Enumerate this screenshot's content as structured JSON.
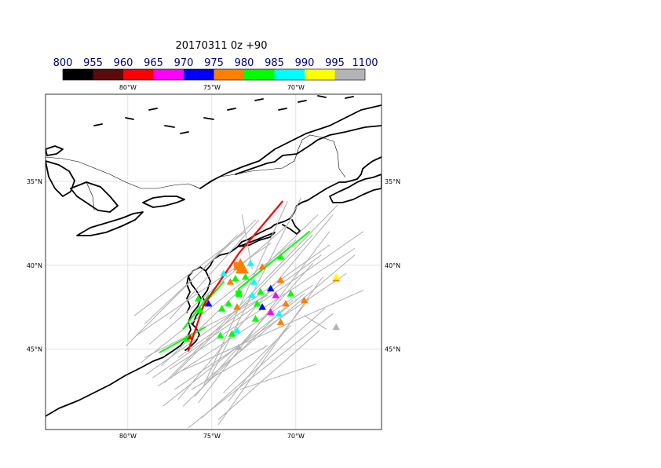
{
  "title": "20170311 0z +90",
  "colorbar": {
    "labels": [
      "800",
      "955",
      "960",
      "965",
      "970",
      "975",
      "980",
      "985",
      "990",
      "995",
      "1100"
    ],
    "colors": [
      "#000000",
      "#5c0a0a",
      "#ff0000",
      "#ff00ff",
      "#0000ff",
      "#ff7f00",
      "#00ff00",
      "#00ffff",
      "#ffff00",
      "#b4b4b4"
    ]
  },
  "axes": {
    "top_lon_labels": [
      "80°W",
      "75°W",
      "70°W"
    ],
    "bottom_lon_labels": [
      "80°W",
      "75°W",
      "70°W"
    ],
    "left_lat_labels": [
      "45°N",
      "40°N",
      "35°N"
    ],
    "right_lat_labels": [
      "45°N",
      "40°N",
      "35°N"
    ]
  },
  "map": {
    "lon_range": [
      -84.9,
      -64.9
    ],
    "lat_range": [
      30.2,
      50.2
    ],
    "grid_lons": [
      -80,
      -75,
      -70
    ],
    "grid_lats": [
      35,
      40,
      45
    ],
    "track_colors": {
      "gray": "#b4b4b4",
      "green": "#00ff00",
      "red": "#ff0000"
    }
  },
  "tracks": {
    "gray": [
      [
        [
          -78.9,
          33.5
        ],
        [
          -68.0,
          41.2
        ]
      ],
      [
        [
          -78.5,
          33.3
        ],
        [
          -66.0,
          42.0
        ]
      ],
      [
        [
          -78.0,
          34.0
        ],
        [
          -68.7,
          43.0
        ]
      ],
      [
        [
          -77.8,
          33.0
        ],
        [
          -67.5,
          43.6
        ]
      ],
      [
        [
          -79.2,
          34.2
        ],
        [
          -70.0,
          41.5
        ]
      ],
      [
        [
          -77.5,
          33.8
        ],
        [
          -66.5,
          41.0
        ]
      ],
      [
        [
          -78.7,
          35.3
        ],
        [
          -70.5,
          42.4
        ]
      ],
      [
        [
          -79.5,
          35.8
        ],
        [
          -71.5,
          41.3
        ]
      ],
      [
        [
          -77.0,
          34.5
        ],
        [
          -68.5,
          40.6
        ]
      ],
      [
        [
          -76.8,
          33.7
        ],
        [
          -66.0,
          38.5
        ]
      ],
      [
        [
          -77.2,
          32.6
        ],
        [
          -67.0,
          39.5
        ]
      ],
      [
        [
          -78.2,
          32.8
        ],
        [
          -69.0,
          38.8
        ]
      ],
      [
        [
          -77.9,
          31.6
        ],
        [
          -69.5,
          38.3
        ]
      ],
      [
        [
          -76.7,
          31.6
        ],
        [
          -70.2,
          37.9
        ]
      ],
      [
        [
          -76.0,
          32.2
        ],
        [
          -69.0,
          40.1
        ]
      ],
      [
        [
          -75.8,
          31.8
        ],
        [
          -68.0,
          42.0
        ]
      ],
      [
        [
          -77.0,
          32.0
        ],
        [
          -67.8,
          43.0
        ]
      ],
      [
        [
          -79.0,
          36.5
        ],
        [
          -72.4,
          42.7
        ]
      ],
      [
        [
          -80.1,
          35.2
        ],
        [
          -73.5,
          41.8
        ]
      ],
      [
        [
          -79.6,
          37.0
        ],
        [
          -73.0,
          42.0
        ]
      ],
      [
        [
          -77.4,
          33.3
        ],
        [
          -69.0,
          41.8
        ]
      ],
      [
        [
          -75.4,
          33.1
        ],
        [
          -66.5,
          40.6
        ]
      ],
      [
        [
          -74.3,
          32.4
        ],
        [
          -70.3,
          36.4
        ]
      ],
      [
        [
          -74.6,
          30.8
        ],
        [
          -68.6,
          36.1
        ]
      ],
      [
        [
          -75.6,
          30.9
        ],
        [
          -68.3,
          37.4
        ]
      ],
      [
        [
          -76.4,
          30.3
        ],
        [
          -67.8,
          37.1
        ]
      ],
      [
        [
          -79.0,
          34.5
        ],
        [
          -71.7,
          38.2
        ]
      ],
      [
        [
          -73.3,
          32.6
        ],
        [
          -68.8,
          34.1
        ]
      ],
      [
        [
          -74.6,
          30.5
        ],
        [
          -68.4,
          39.3
        ]
      ],
      [
        [
          -77.5,
          36.8
        ],
        [
          -72.2,
          42.7
        ]
      ],
      [
        [
          -73.2,
          43.0
        ],
        [
          -72.6,
          39.8
        ]
      ],
      [
        [
          -69.5,
          37.0
        ],
        [
          -68.2,
          36.2
        ]
      ],
      [
        [
          -76.2,
          32.6
        ],
        [
          -71.7,
          35.2
        ]
      ],
      [
        [
          -75.0,
          33.5
        ],
        [
          -69.7,
          44.0
        ]
      ],
      [
        [
          -75.5,
          32.8
        ],
        [
          -70.5,
          43.8
        ]
      ],
      [
        [
          -74.0,
          31.9
        ],
        [
          -69.2,
          38.0
        ]
      ]
    ],
    "green": [
      [
        [
          -78.1,
          34.8
        ],
        [
          -75.4,
          36.3
        ]
      ],
      [
        [
          -76.7,
          36.2
        ],
        [
          -75.2,
          38.2
        ]
      ],
      [
        [
          -73.4,
          38.6
        ],
        [
          -69.2,
          42.0
        ]
      ],
      [
        [
          -75.2,
          38.0
        ],
        [
          -74.3,
          39.0
        ]
      ]
    ],
    "red": [
      [
        [
          -76.4,
          34.9
        ],
        [
          -75.5,
          37.6
        ]
      ],
      [
        [
          -75.5,
          37.6
        ],
        [
          -73.4,
          40.7
        ]
      ],
      [
        [
          -73.4,
          40.7
        ],
        [
          -70.8,
          43.8
        ]
      ]
    ]
  },
  "markers": [
    {
      "lon": -73.3,
      "lat": 40.0,
      "color": "#ff7f00",
      "size": 9
    },
    {
      "lon": -73.2,
      "lat": 39.8,
      "color": "#ff7f00",
      "size": 9
    },
    {
      "lon": -72.7,
      "lat": 40.1,
      "color": "#00ffff",
      "size": 5
    },
    {
      "lon": -72.0,
      "lat": 39.9,
      "color": "#ff7f00",
      "size": 5
    },
    {
      "lon": -73.6,
      "lat": 39.2,
      "color": "#00ff00",
      "size": 5
    },
    {
      "lon": -73.0,
      "lat": 39.3,
      "color": "#00ff00",
      "size": 5
    },
    {
      "lon": -72.5,
      "lat": 39.0,
      "color": "#00ffff",
      "size": 5
    },
    {
      "lon": -74.3,
      "lat": 39.5,
      "color": "#00ffff",
      "size": 5
    },
    {
      "lon": -73.9,
      "lat": 39.0,
      "color": "#ff7f00",
      "size": 5
    },
    {
      "lon": -72.1,
      "lat": 38.4,
      "color": "#00ff00",
      "size": 5
    },
    {
      "lon": -72.6,
      "lat": 38.2,
      "color": "#00ffff",
      "size": 5
    },
    {
      "lon": -71.5,
      "lat": 38.6,
      "color": "#0000ff",
      "size": 5
    },
    {
      "lon": -71.2,
      "lat": 38.2,
      "color": "#ff00ff",
      "size": 5
    },
    {
      "lon": -70.9,
      "lat": 39.1,
      "color": "#ff7f00",
      "size": 5
    },
    {
      "lon": -70.3,
      "lat": 38.3,
      "color": "#00ff00",
      "size": 5
    },
    {
      "lon": -70.9,
      "lat": 40.5,
      "color": "#00ff00",
      "size": 5
    },
    {
      "lon": -70.6,
      "lat": 37.7,
      "color": "#ff7f00",
      "size": 5
    },
    {
      "lon": -69.5,
      "lat": 37.9,
      "color": "#ff7f00",
      "size": 5
    },
    {
      "lon": -67.6,
      "lat": 39.2,
      "color": "#ff7f00",
      "size": 5
    },
    {
      "lon": -67.6,
      "lat": 39.3,
      "color": "#ffff00",
      "size": 5
    },
    {
      "lon": -72.3,
      "lat": 37.7,
      "color": "#00ff00",
      "size": 5
    },
    {
      "lon": -72.0,
      "lat": 37.5,
      "color": "#0000ff",
      "size": 5
    },
    {
      "lon": -71.5,
      "lat": 37.2,
      "color": "#ff00ff",
      "size": 5
    },
    {
      "lon": -71.0,
      "lat": 37.1,
      "color": "#00ffff",
      "size": 5
    },
    {
      "lon": -73.5,
      "lat": 37.5,
      "color": "#ff7f00",
      "size": 5
    },
    {
      "lon": -74.0,
      "lat": 37.7,
      "color": "#00ff00",
      "size": 5
    },
    {
      "lon": -74.4,
      "lat": 37.4,
      "color": "#00ff00",
      "size": 5
    },
    {
      "lon": -75.2,
      "lat": 37.7,
      "color": "#0000ff",
      "size": 5
    },
    {
      "lon": -75.8,
      "lat": 38.0,
      "color": "#00ff00",
      "size": 5
    },
    {
      "lon": -75.7,
      "lat": 37.3,
      "color": "#00ff00",
      "size": 5
    },
    {
      "lon": -72.4,
      "lat": 36.8,
      "color": "#00ff00",
      "size": 5
    },
    {
      "lon": -70.9,
      "lat": 36.6,
      "color": "#ff7f00",
      "size": 5
    },
    {
      "lon": -73.5,
      "lat": 36.1,
      "color": "#00ffff",
      "size": 5
    },
    {
      "lon": -73.8,
      "lat": 35.9,
      "color": "#00ff00",
      "size": 5
    },
    {
      "lon": -74.5,
      "lat": 35.8,
      "color": "#00ff00",
      "size": 5
    },
    {
      "lon": -76.5,
      "lat": 35.6,
      "color": "#00ff00",
      "size": 5
    },
    {
      "lon": -76.3,
      "lat": 35.7,
      "color": "#ff0000",
      "size": 4
    },
    {
      "lon": -67.6,
      "lat": 36.3,
      "color": "#b4b4b4",
      "size": 5
    },
    {
      "lon": -73.4,
      "lat": 35.1,
      "color": "#b4b4b4",
      "size": 5
    },
    {
      "lon": -73.4,
      "lat": 38.4,
      "color": "#00ff00",
      "size": 5
    }
  ],
  "markers_squares": [
    {
      "lon": -73.4,
      "lat": 38.3,
      "color": "#00ff00"
    },
    {
      "lon": -73.5,
      "lat": 40.0,
      "color": "#ff7f00"
    }
  ]
}
